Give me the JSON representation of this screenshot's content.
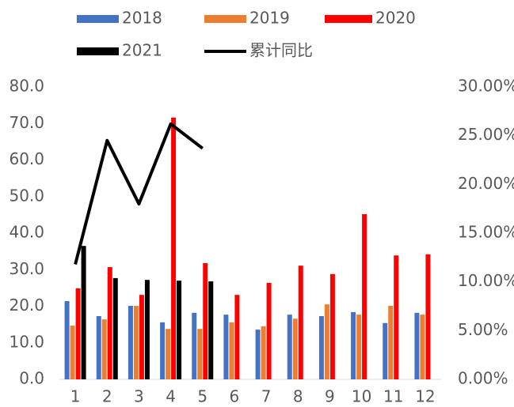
{
  "chart_data": {
    "type": "bar",
    "categories": [
      "1",
      "2",
      "3",
      "4",
      "5",
      "6",
      "7",
      "8",
      "9",
      "10",
      "11",
      "12"
    ],
    "series": [
      {
        "name": "2018",
        "color": "#4472c4",
        "values": [
          21.4,
          17.3,
          20.1,
          15.6,
          18.2,
          17.7,
          13.6,
          17.7,
          17.3,
          18.4,
          15.4,
          18.2
        ]
      },
      {
        "name": "2019",
        "color": "#ed7d31",
        "values": [
          14.7,
          16.4,
          20.1,
          13.8,
          13.8,
          15.6,
          14.5,
          16.6,
          20.5,
          17.7,
          20.1,
          17.7
        ]
      },
      {
        "name": "2020",
        "color": "#ff0000",
        "values": [
          24.9,
          30.7,
          23.1,
          71.6,
          31.8,
          23.1,
          26.4,
          31.1,
          28.8,
          45.2,
          33.9,
          34.2
        ]
      },
      {
        "name": "2021",
        "color": "#000000",
        "values": [
          36.5,
          27.7,
          27.2,
          27.0,
          26.8,
          null,
          null,
          null,
          null,
          null,
          null,
          null
        ]
      },
      {
        "name": "累计同比",
        "color": "#000000",
        "type": "line",
        "axis": "y2",
        "values": [
          11.8,
          24.5,
          18.0,
          26.2,
          23.7,
          null,
          null,
          null,
          null,
          null,
          null,
          null
        ]
      }
    ],
    "ylim": [
      0,
      80
    ],
    "yticks": [
      {
        "value": 0,
        "label": "0.0"
      },
      {
        "value": 10,
        "label": "10.0"
      },
      {
        "value": 20,
        "label": "20.0"
      },
      {
        "value": 30,
        "label": "30.0"
      },
      {
        "value": 40,
        "label": "40.0"
      },
      {
        "value": 50,
        "label": "50.0"
      },
      {
        "value": 60,
        "label": "60.0"
      },
      {
        "value": 70,
        "label": "70.0"
      },
      {
        "value": 80,
        "label": "80.0"
      }
    ],
    "y2lim": [
      0,
      30
    ],
    "y2ticks": [
      {
        "value": 0,
        "label": "0.00%"
      },
      {
        "value": 5,
        "label": "5.00%"
      },
      {
        "value": 10,
        "label": "10.00%"
      },
      {
        "value": 15,
        "label": "15.00%"
      },
      {
        "value": 20,
        "label": "20.00%"
      },
      {
        "value": 25,
        "label": "25.00%"
      },
      {
        "value": 30,
        "label": "30.00%"
      }
    ],
    "grid": false
  }
}
